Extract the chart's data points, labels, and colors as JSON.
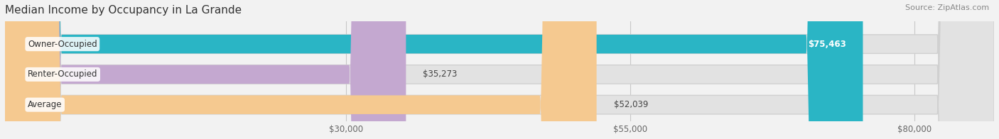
{
  "title": "Median Income by Occupancy in La Grande",
  "source": "Source: ZipAtlas.com",
  "categories": [
    "Owner-Occupied",
    "Renter-Occupied",
    "Average"
  ],
  "values": [
    75463,
    35273,
    52039
  ],
  "labels": [
    "$75,463",
    "$35,273",
    "$52,039"
  ],
  "bar_colors": [
    "#2ab5c5",
    "#c4a8d0",
    "#f5c990"
  ],
  "xlim": [
    0,
    87000
  ],
  "xticks": [
    30000,
    55000,
    80000
  ],
  "xticklabels": [
    "$30,000",
    "$55,000",
    "$80,000"
  ],
  "background_color": "#f2f2f2",
  "bar_bg_color": "#e2e2e2",
  "title_fontsize": 11,
  "label_fontsize": 8.5,
  "tick_fontsize": 8.5,
  "source_fontsize": 8,
  "value_label_colors": [
    "#ffffff",
    "#555555",
    "#555555"
  ]
}
